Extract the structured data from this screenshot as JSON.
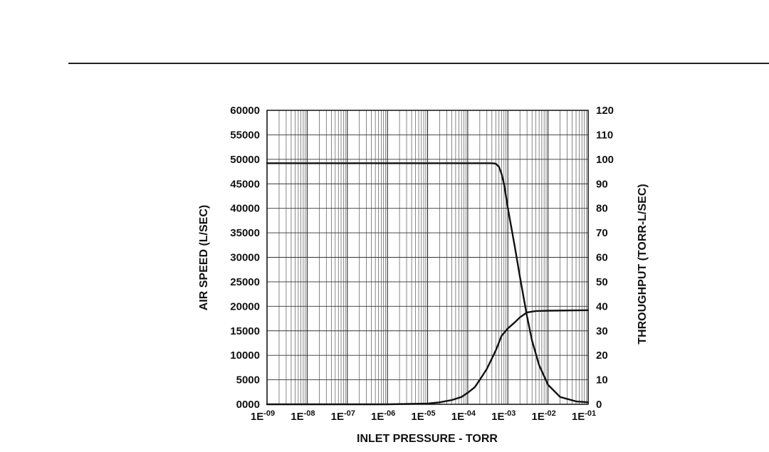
{
  "chart_data": {
    "type": "line",
    "title": "",
    "xlabel": "INLET PRESSURE - TORR",
    "ylabel": "AIR SPEED (L/SEC)",
    "y2label": "THROUGHPUT (TORR-L/SEC)",
    "xscale": "log",
    "xlim": [
      1e-09,
      0.1
    ],
    "ylim": [
      0,
      60000
    ],
    "y2lim": [
      0,
      120
    ],
    "x_tick_labels": [
      {
        "base": "1E",
        "exp": "-09"
      },
      {
        "base": "1E",
        "exp": "-08"
      },
      {
        "base": "1E",
        "exp": "-07"
      },
      {
        "base": "1E",
        "exp": "-06"
      },
      {
        "base": "1E",
        "exp": "-05"
      },
      {
        "base": "1E",
        "exp": "-04"
      },
      {
        "base": "1E",
        "exp": "-03"
      },
      {
        "base": "1E",
        "exp": "-02"
      },
      {
        "base": "1E",
        "exp": "-01"
      }
    ],
    "y_ticks": [
      "0000",
      "5000",
      "10000",
      "15000",
      "20000",
      "25000",
      "30000",
      "35000",
      "40000",
      "45000",
      "50000",
      "55000",
      "60000"
    ],
    "y2_ticks": [
      "0",
      "10",
      "20",
      "30",
      "40",
      "50",
      "60",
      "70",
      "80",
      "90",
      "100",
      "110",
      "120"
    ],
    "grid": true,
    "legend": "none",
    "series": [
      {
        "axis": "left",
        "x": [
          1e-09,
          1e-08,
          1e-07,
          1e-06,
          1e-05,
          0.0001,
          0.0004,
          0.0005,
          0.0006,
          0.0007,
          0.0008,
          0.001,
          0.0015,
          0.002,
          0.003,
          0.004,
          0.006,
          0.01,
          0.02,
          0.05,
          0.1
        ],
        "values": [
          49200,
          49200,
          49200,
          49200,
          49200,
          49200,
          49200,
          49100,
          48500,
          47000,
          45000,
          40000,
          32000,
          26000,
          18000,
          13000,
          8000,
          4000,
          1500,
          600,
          400
        ]
      },
      {
        "axis": "right",
        "x": [
          1e-09,
          1e-06,
          1e-05,
          2e-05,
          4e-05,
          7e-05,
          0.0001,
          0.00015,
          0.0002,
          0.0003,
          0.0005,
          0.0007,
          0.001,
          0.0015,
          0.002,
          0.003,
          0.005,
          0.01,
          0.1
        ],
        "values": [
          0,
          0,
          0.3,
          0.8,
          1.7,
          3,
          4.7,
          7,
          10,
          14.5,
          22,
          28,
          31,
          33.5,
          35.5,
          37.5,
          38.1,
          38.2,
          38.4
        ]
      }
    ]
  }
}
